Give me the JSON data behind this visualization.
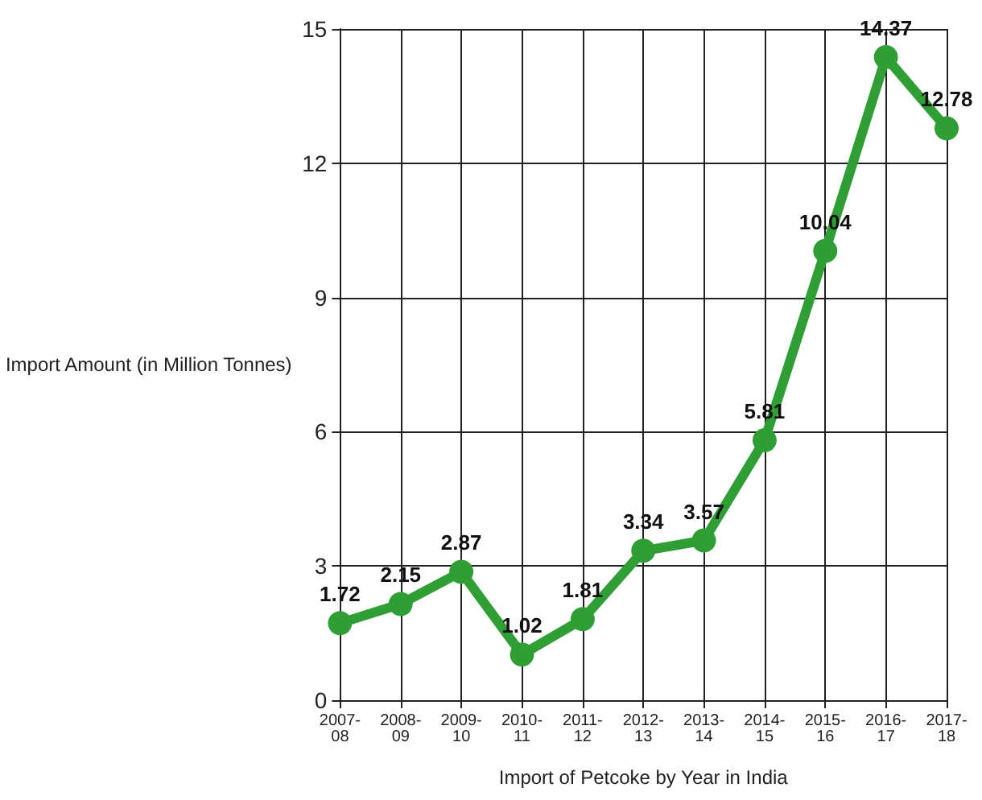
{
  "chart_data": {
    "type": "line",
    "xlabel": "Import of Petcoke by Year in India",
    "ylabel": "Import Amount (in Million Tonnes)",
    "categories": [
      "2007-08",
      "2008-09",
      "2009-10",
      "2010-11",
      "2011-12",
      "2012-13",
      "2013-14",
      "2014-15",
      "2015-16",
      "2016-17",
      "2017-18"
    ],
    "series": [
      {
        "color": "#2e9e35",
        "values": [
          1.72,
          2.15,
          2.87,
          1.02,
          1.81,
          3.34,
          3.57,
          5.81,
          10.04,
          14.37,
          12.78
        ]
      }
    ],
    "ylim": [
      0,
      15
    ],
    "yticks": [
      0,
      3,
      6,
      9,
      12,
      15
    ],
    "grid": true,
    "marker": "circle",
    "line_style": "solid",
    "data_labels": true
  }
}
